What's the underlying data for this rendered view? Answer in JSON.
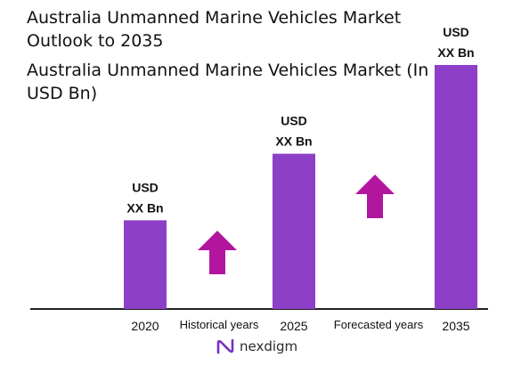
{
  "title": "Australia Unmanned Marine Vehicles Market Outlook to 2035",
  "subtitle": "Australia Unmanned Marine Vehicles Market (In USD Bn)",
  "logo": {
    "text": "nexdigm"
  },
  "colors": {
    "bar": "#8d3fc7",
    "arrow": "#b2169f",
    "axis": "#222222"
  },
  "chart_data": {
    "type": "bar",
    "categories": [
      "2020",
      "2025",
      "2035"
    ],
    "values": [
      100,
      175,
      275
    ],
    "value_labels": [
      [
        "USD",
        "XX Bn"
      ],
      [
        "USD",
        "XX Bn"
      ],
      [
        "USD",
        "XX Bn"
      ]
    ],
    "period_labels": [
      "Historical years",
      "Forecasted years"
    ],
    "ylim": [
      0,
      280
    ],
    "grid": false
  }
}
